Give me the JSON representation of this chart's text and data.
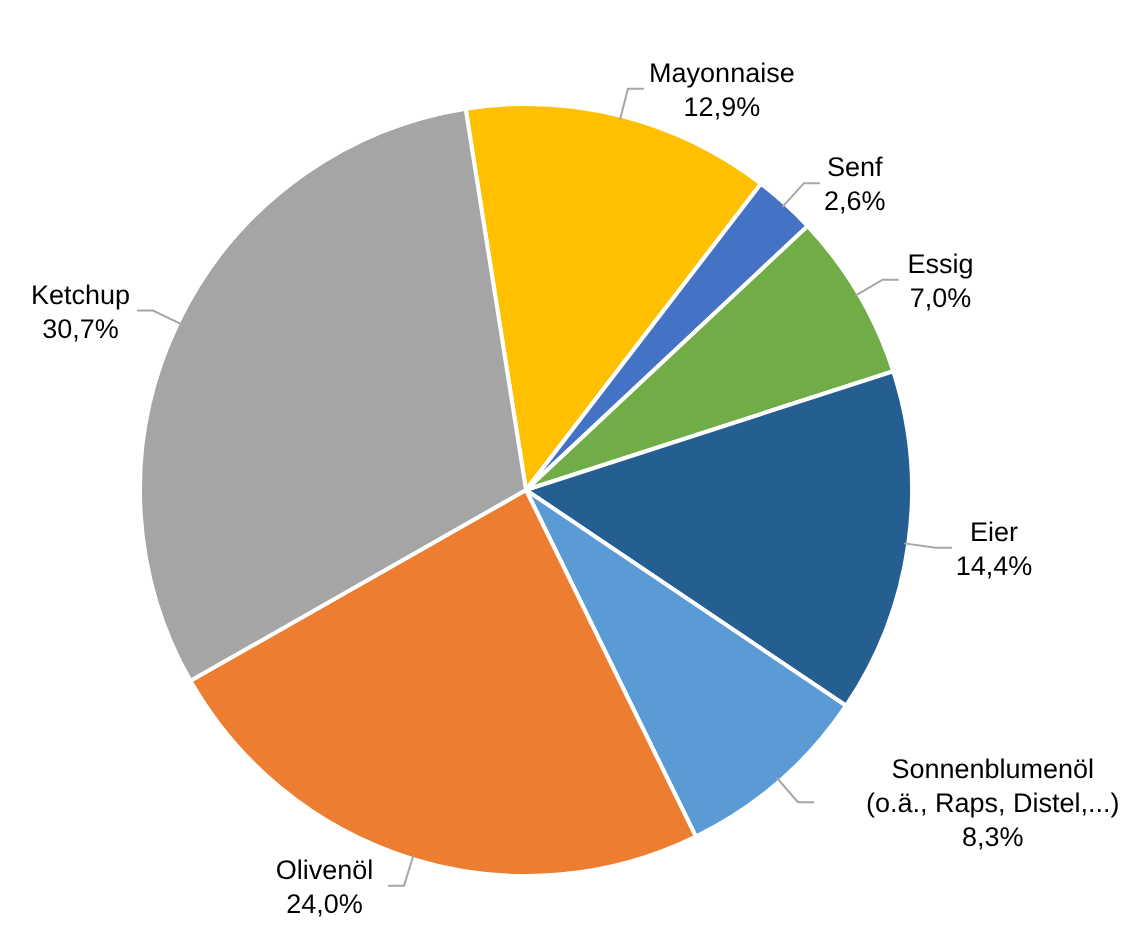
{
  "chart_data": {
    "type": "pie",
    "categories": [
      "Mayonnaise",
      "Senf",
      "Essig",
      "Eier",
      "Sonnenblumenöl\n(o.ä., Raps, Distel,...)",
      "Olivenöl",
      "Ketchup"
    ],
    "values": [
      12.9,
      2.6,
      7.0,
      14.4,
      8.3,
      24.0,
      30.7
    ],
    "value_labels": [
      "12,9%",
      "2,6%",
      "7,0%",
      "14,4%",
      "8,3%",
      "24,0%",
      "30,7%"
    ],
    "colors": [
      "#ffc000",
      "#4472c4",
      "#70ad47",
      "#255e91",
      "#5b9bd5",
      "#ed7d31",
      "#a5a5a5"
    ]
  }
}
